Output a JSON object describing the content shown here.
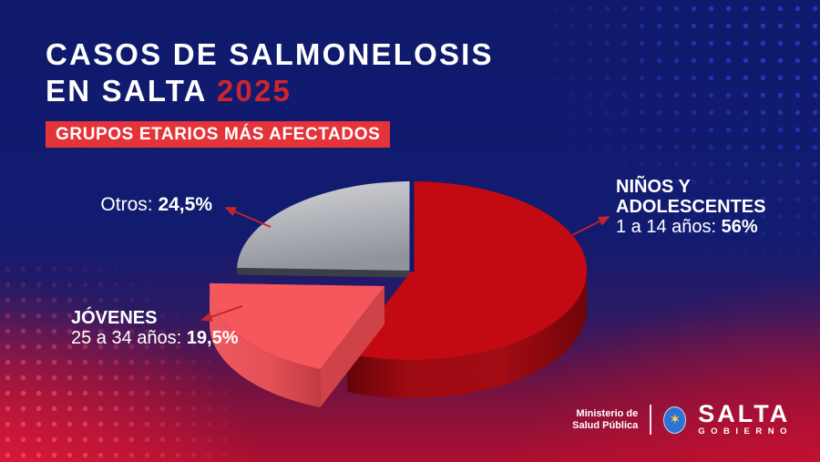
{
  "palette": {
    "background_navy": "#101a6c",
    "background_red": "#ad1030",
    "accent_red": "#e43339",
    "title_year_red": "#cf2430",
    "arrow_red": "#c6232e",
    "text_white": "#ffffff",
    "emblem_blue": "#2f72d2",
    "emblem_gold": "#ffd94d"
  },
  "header": {
    "title_line1": "CASOS DE SALMONELOSIS",
    "title_line2": "EN SALTA",
    "title_year": "2025",
    "badge": "GRUPOS ETARIOS MÁS AFECTADOS"
  },
  "chart_data": {
    "type": "pie",
    "effect": "3d-exploded",
    "title": "CASOS DE SALMONELOSIS EN SALTA 2025",
    "subtitle": "GRUPOS ETARIOS MÁS AFECTADOS",
    "unit": "percent",
    "start_angle_deg": -90,
    "clockwise": true,
    "legend_position": "callout-labels",
    "slices": [
      {
        "name": "ninos-adolescentes",
        "label_line1": "NIÑOS Y",
        "label_line2": "ADOLESCENTES",
        "detail": "1 a 14 años:",
        "value": 56,
        "value_text": "56%",
        "color": "#c30911",
        "side_color": "#92080f",
        "cut_color": "#930910",
        "side_gradient": [
          [
            "0%",
            "#640408"
          ],
          [
            "25%",
            "#9e0a12"
          ],
          [
            "65%",
            "#a30b13"
          ],
          [
            "100%",
            "#6f0509"
          ]
        ],
        "explode": [
          0,
          0
        ]
      },
      {
        "name": "jovenes",
        "label_line1": "JÓVENES",
        "detail": "25 a 34 años:",
        "value": 19.5,
        "value_text": "19,5%",
        "color": "#f6575c",
        "side_color": "#dd4b51",
        "cut_color": "#cf4248",
        "side_gradient": [
          [
            "0%",
            "#ef5a60"
          ],
          [
            "55%",
            "#e45056"
          ],
          [
            "100%",
            "#c13b42"
          ]
        ],
        "explode": [
          -30,
          17
        ]
      },
      {
        "name": "otros",
        "label_prefix": "Otros:",
        "value": 24.5,
        "value_text": "24,5%",
        "color": "#c3c5cb",
        "side_color": "#3c3e47",
        "cut_color": "#3c3e47",
        "top_gradient": [
          [
            "0%",
            "#d4d6db"
          ],
          [
            "100%",
            "#92949c"
          ]
        ],
        "explode": [
          0,
          0
        ]
      }
    ]
  },
  "footer": {
    "ministry_line1": "Ministerio de",
    "ministry_line2": "Salud Pública",
    "government_name": "SALTA",
    "government_sub": "GOBIERNO"
  }
}
